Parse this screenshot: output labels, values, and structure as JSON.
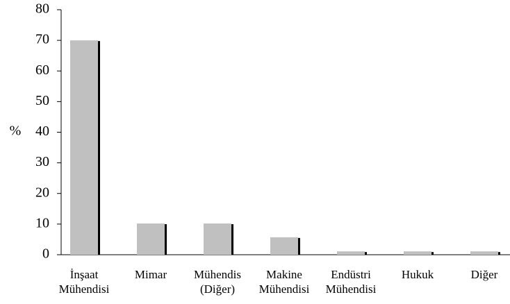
{
  "chart_data": {
    "type": "bar",
    "ylabel": "%",
    "categories": [
      [
        "İnşaat",
        "Mühendisi"
      ],
      [
        "Mimar"
      ],
      [
        "Mühendis",
        "(Diğer)"
      ],
      [
        "Makine",
        "Mühendisi"
      ],
      [
        "Endüstri",
        "Mühendisi"
      ],
      [
        "Hukuk"
      ],
      [
        "Diğer"
      ]
    ],
    "values": [
      70,
      10.2,
      10.2,
      5.7,
      1.1,
      1.1,
      1.1
    ],
    "color": "#c0c0c0",
    "ylim": [
      0,
      80
    ],
    "yticks": [
      0,
      10,
      20,
      30,
      40,
      50,
      60,
      70,
      80
    ],
    "grid": false
  }
}
